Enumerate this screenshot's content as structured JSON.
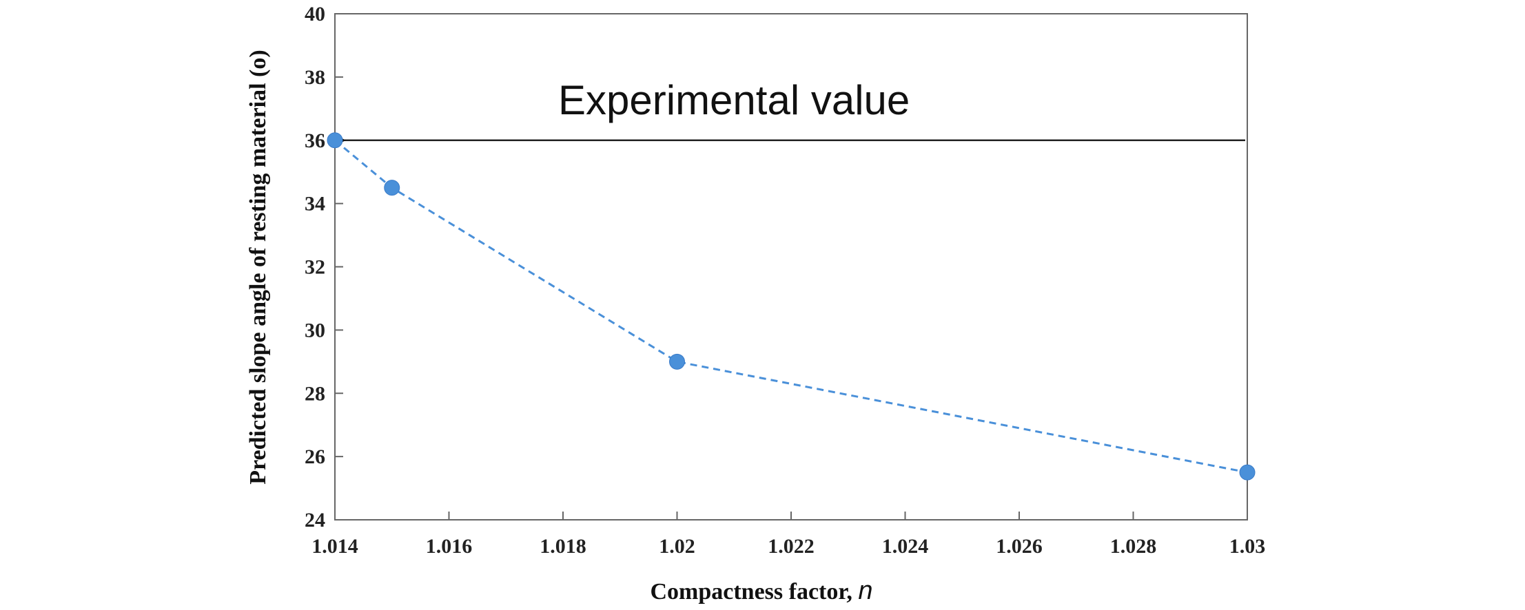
{
  "chart_data": {
    "type": "line",
    "xlabel": "Compactness factor,",
    "xlabel_var": "n",
    "ylabel": "Predicted slope angle of resting material (o)",
    "xlim": [
      1.014,
      1.03
    ],
    "ylim": [
      24,
      40
    ],
    "x_ticks": [
      "1.014",
      "1.016",
      "1.018",
      "1.02",
      "1.022",
      "1.024",
      "1.026",
      "1.028",
      "1.03"
    ],
    "y_ticks": [
      "24",
      "26",
      "28",
      "30",
      "32",
      "34",
      "36",
      "38",
      "40"
    ],
    "grid": false,
    "series": [
      {
        "color": "#4a90d9",
        "line_style": "dashed",
        "marker": "circle",
        "points": [
          {
            "x": 1.014,
            "y": 36
          },
          {
            "x": 1.015,
            "y": 34.5
          },
          {
            "x": 1.02,
            "y": 29
          },
          {
            "x": 1.03,
            "y": 25.5
          }
        ]
      }
    ],
    "reference_line": {
      "label": "Experimental value",
      "y": 36,
      "color": "#222222",
      "arrow": "left"
    }
  }
}
